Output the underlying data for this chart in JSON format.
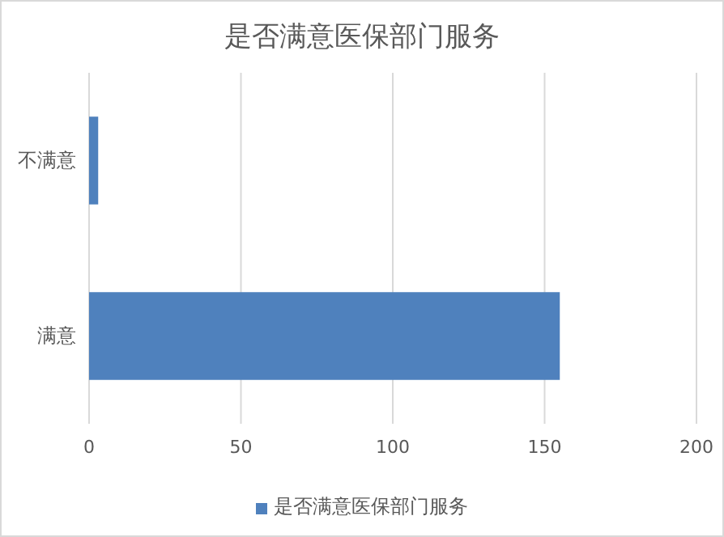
{
  "chart_data": {
    "type": "bar",
    "title": "是否满意医保部门服务",
    "orientation": "horizontal",
    "categories": [
      "不满意",
      "满意"
    ],
    "series": [
      {
        "name": "是否满意医保部门服务",
        "color": "#4f81bd",
        "values": [
          3,
          155
        ]
      }
    ],
    "xlim": [
      0,
      200
    ],
    "xticks": [
      0,
      50,
      100,
      150,
      200
    ],
    "grid": "x",
    "legend": "bottom"
  }
}
